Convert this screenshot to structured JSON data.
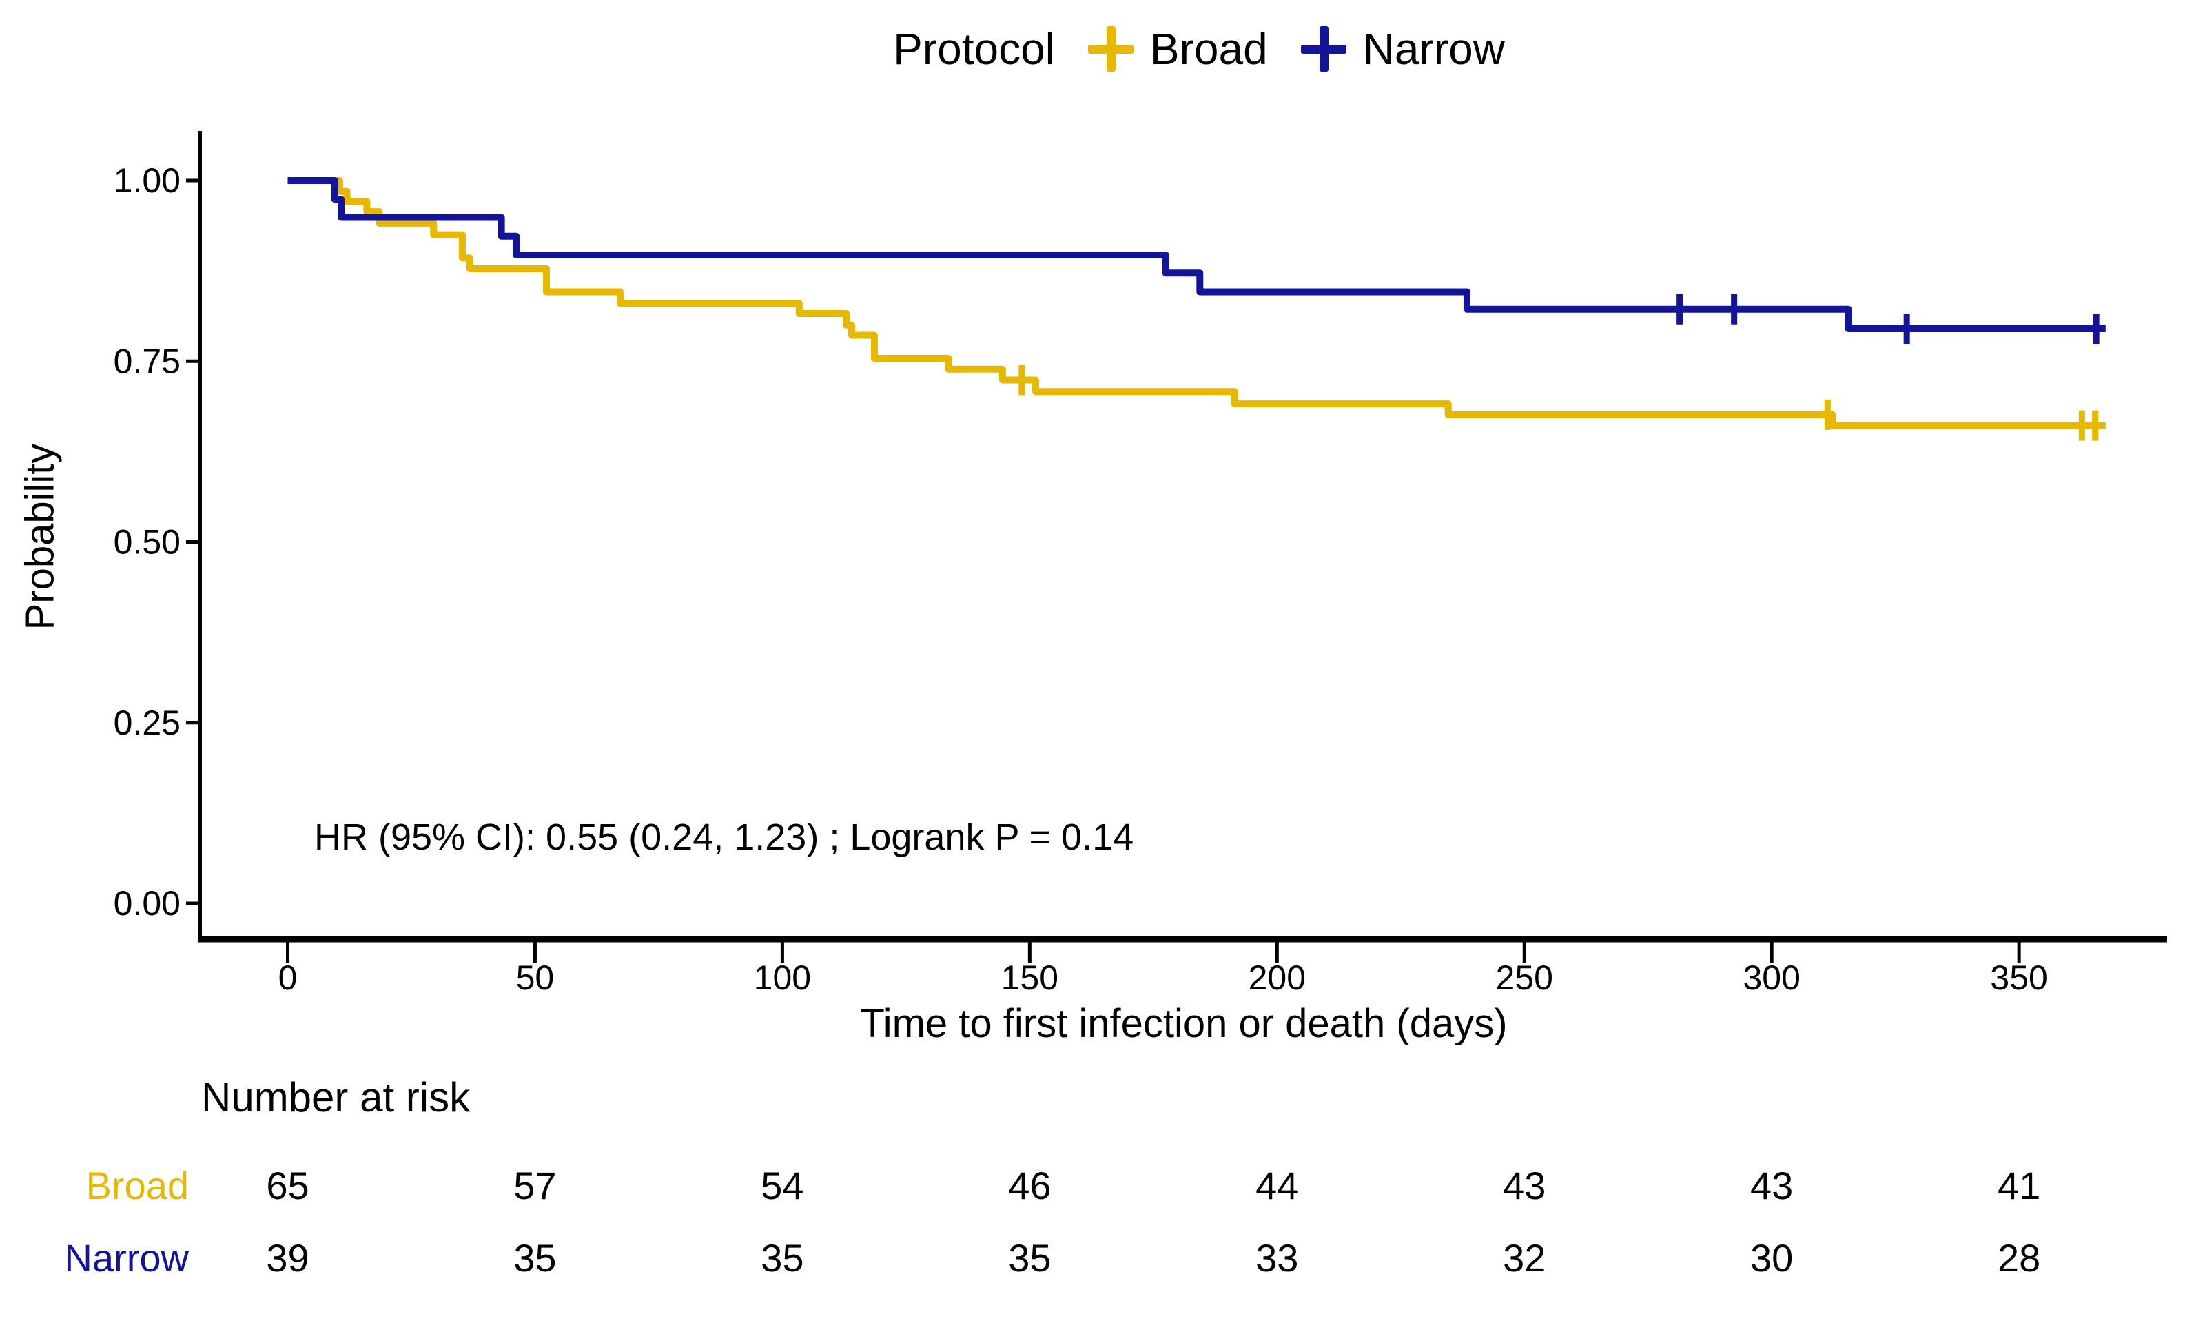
{
  "page": {
    "background": "#FFFFFF"
  },
  "legend": {
    "title": "Protocol",
    "items": [
      {
        "label": "Broad",
        "color": "#E7B800"
      },
      {
        "label": "Narrow",
        "color": "#14149B"
      }
    ]
  },
  "chart_data": {
    "type": "line",
    "variant": "kaplan_meier_step",
    "title": "Protocol",
    "xlabel": "Time to first infection or death (days)",
    "ylabel": "Probability",
    "annotation": "HR (95% CI): 0.55 (0.24, 1.23) ; Logrank P = 0.14",
    "grid": false,
    "legend_position": "top",
    "xlim": [
      0,
      379
    ],
    "ylim": [
      0,
      1
    ],
    "xticks": [
      {
        "value": 0,
        "label": "0"
      },
      {
        "value": 50,
        "label": "50"
      },
      {
        "value": 100,
        "label": "100"
      },
      {
        "value": 150,
        "label": "150"
      },
      {
        "value": 200,
        "label": "200"
      },
      {
        "value": 250,
        "label": "250"
      },
      {
        "value": 300,
        "label": "300"
      },
      {
        "value": 350,
        "label": "350"
      }
    ],
    "yticks": [
      {
        "value": 1.0,
        "label": "1.00"
      },
      {
        "value": 0.75,
        "label": "0.75"
      },
      {
        "value": 0.5,
        "label": "0.50"
      },
      {
        "value": 0.25,
        "label": "0.25"
      },
      {
        "value": 0.0,
        "label": "0.00"
      }
    ],
    "series": [
      {
        "name": "Broad",
        "color": "#E7B800",
        "n_start": 65,
        "steps": [
          [
            0,
            1.0
          ],
          [
            10.5,
            0.985
          ],
          [
            12,
            0.971
          ],
          [
            16,
            0.957
          ],
          [
            18.5,
            0.941
          ],
          [
            29.5,
            0.925
          ],
          [
            35.3,
            0.893
          ],
          [
            36.8,
            0.878
          ],
          [
            52.3,
            0.846
          ],
          [
            67.2,
            0.83
          ],
          [
            103.4,
            0.816
          ],
          [
            112.9,
            0.8
          ],
          [
            114,
            0.786
          ],
          [
            118.6,
            0.754
          ],
          [
            133.6,
            0.739
          ],
          [
            144.5,
            0.724
          ],
          [
            151.2,
            0.708
          ],
          [
            191.4,
            0.691
          ],
          [
            234.6,
            0.676
          ],
          [
            312.3,
            0.661
          ]
        ],
        "end_day": 367.5,
        "censor_marks": [
          [
            148.4,
            0.724
          ],
          [
            311.3,
            0.676
          ],
          [
            362.7,
            0.661
          ],
          [
            365.4,
            0.661
          ]
        ]
      },
      {
        "name": "Narrow",
        "color": "#14149B",
        "n_start": 39,
        "steps": [
          [
            0,
            1.0
          ],
          [
            9.5,
            0.974
          ],
          [
            10.8,
            0.949
          ],
          [
            43.2,
            0.923
          ],
          [
            46.2,
            0.897
          ],
          [
            177.5,
            0.872
          ],
          [
            184.4,
            0.846
          ],
          [
            238.4,
            0.822
          ],
          [
            315.5,
            0.795
          ]
        ],
        "end_day": 367.5,
        "censor_marks": [
          [
            281.4,
            0.822
          ],
          [
            292.4,
            0.822
          ],
          [
            327.3,
            0.795
          ],
          [
            365.6,
            0.795
          ]
        ]
      }
    ],
    "risk_table": {
      "title": "Number at risk",
      "times": [
        0,
        50,
        100,
        150,
        200,
        250,
        300,
        350
      ],
      "rows": [
        {
          "label": "Broad",
          "color": "#E7B800",
          "values": [
            65,
            57,
            54,
            46,
            44,
            43,
            43,
            41
          ]
        },
        {
          "label": "Narrow",
          "color": "#14149B",
          "values": [
            39,
            35,
            35,
            35,
            33,
            32,
            30,
            28
          ]
        }
      ]
    }
  }
}
